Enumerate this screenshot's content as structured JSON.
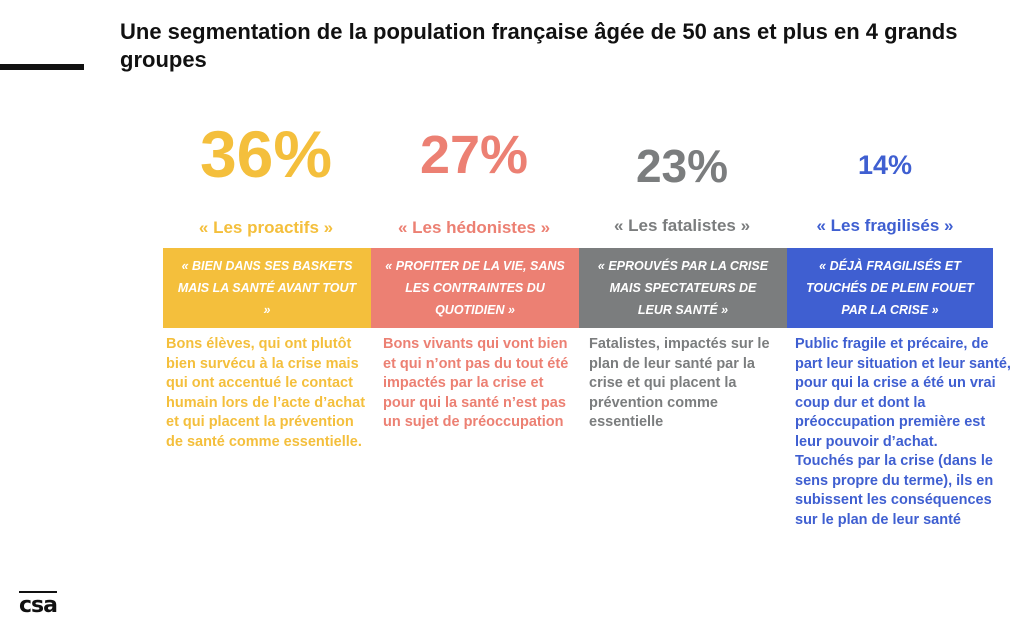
{
  "title": "Une segmentation de la population française âgée de 50 ans et plus en 4 grands groupes",
  "logo_text": "csa",
  "segments": [
    {
      "percent": "36%",
      "name": "« Les proactifs »",
      "tagline": "« Bien dans ses baskets mais la santé avant tout »",
      "description": [
        "Bons élèves, qui ont plutôt bien survécu à la crise mais qui ont accentué le contact humain lors de l’acte d’achat et qui placent la prévention de santé comme essentielle."
      ],
      "color": "#f4bf3c"
    },
    {
      "percent": "27%",
      "name": "« Les hédonistes »",
      "tagline": "« Profiter de la vie, sans les contraintes du quotidien »",
      "description": [
        "Bons vivants qui vont bien et qui n’ont pas du tout été impactés par la crise et pour qui la santé n’est pas un sujet de préoccupation"
      ],
      "color": "#ec8073"
    },
    {
      "percent": "23%",
      "name": "« Les fatalistes »",
      "tagline": "« Eprouvés par la crise mais spectateurs de leur santé »",
      "description": [
        "Fatalistes, impactés sur le plan de leur santé par la crise et qui placent la prévention comme essentielle"
      ],
      "color": "#7b7d7e"
    },
    {
      "percent": "14%",
      "name": "« Les fragilisés »",
      "tagline": "«  Déjà fragilisés et touchés de plein fouet par la crise »",
      "description": [
        "Public fragile et précaire, de part leur situation et leur santé, pour qui la crise a été un vrai coup dur et dont la préoccupation première est leur pouvoir d’achat.",
        "Touchés par la crise (dans le sens propre du terme), ils en subissent les conséquences sur le plan de leur santé"
      ],
      "color": "#3f5fd1"
    }
  ]
}
